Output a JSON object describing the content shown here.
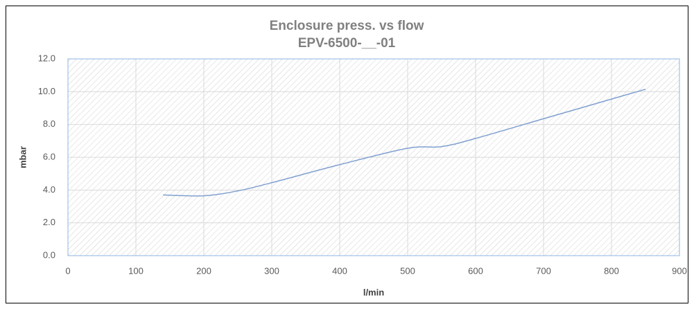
{
  "chart_data": {
    "type": "line",
    "title": "Enclosure press. vs flow",
    "subtitle": "EPV-6500-__-01",
    "xlabel": "l/min",
    "ylabel": "mbar",
    "x": [
      140,
      200,
      250,
      300,
      400,
      500,
      550,
      600,
      700,
      850
    ],
    "series": [
      {
        "name": "mbar",
        "color": "#7f9fcf",
        "values": [
          3.7,
          3.65,
          3.95,
          4.45,
          5.55,
          6.55,
          6.65,
          7.15,
          8.35,
          10.15
        ]
      }
    ],
    "xlim": [
      0,
      900
    ],
    "xticks": [
      0,
      100,
      200,
      300,
      400,
      500,
      600,
      700,
      800,
      900
    ],
    "ylim": [
      0,
      12
    ],
    "yticks": [
      {
        "value": 0,
        "label": "0.0"
      },
      {
        "value": 2,
        "label": "2.0"
      },
      {
        "value": 4,
        "label": "4.0"
      },
      {
        "value": 6,
        "label": "6.0"
      },
      {
        "value": 8,
        "label": "8.0"
      },
      {
        "value": 10,
        "label": "10.0"
      },
      {
        "value": 12,
        "label": "12.0"
      }
    ],
    "grid": true
  }
}
